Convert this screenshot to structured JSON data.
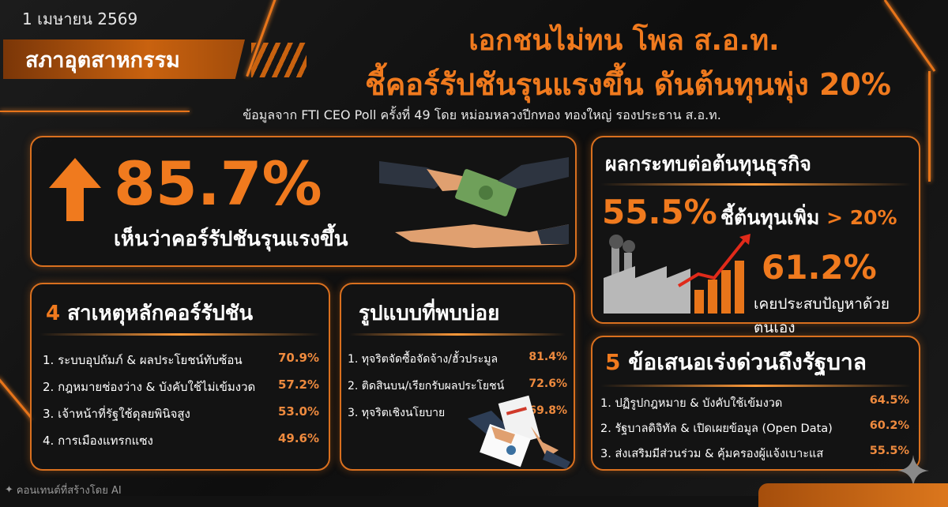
{
  "header": {
    "date": "1 เมษายน 2569",
    "org_banner": "สภาอุตสาหกรรม",
    "title_line1": "เอกชนไม่ทน โพล ส.อ.ท.",
    "title_line2": "ชี้คอร์รัปชันรุนแรงขึ้น ดันต้นทุนพุ่ง 20%",
    "subtitle": "ข้อมูลจาก FTI CEO Poll ครั้งที่ 49 โดย หม่อมหลวงปีกทอง ทองใหญ่ รองประธาน ส.อ.ท."
  },
  "headline_stat": {
    "value": "85.7%",
    "label": "เห็นว่าคอร์รัปชันรุนแรงขึ้น",
    "icon": "arrow-up-icon"
  },
  "cost_impact": {
    "title": "ผลกระทบต่อต้นทุนธุรกิจ",
    "stat1_value": "55.5%",
    "stat1_label": "ชี้ต้นทุนเพิ่ม",
    "stat1_threshold": "> 20%",
    "stat2_value": "61.2%",
    "stat2_label": "เคยประสบปัญหาด้วยตนเอง"
  },
  "causes": {
    "title_number": "4",
    "title": "สาเหตุหลักคอร์รัปชัน",
    "items": [
      {
        "label": "1. ระบบอุปถัมภ์ & ผลประโยชน์ทับซ้อน",
        "value": "70.9%"
      },
      {
        "label": "2. กฎหมายช่องว่าง & บังคับใช้ไม่เข้มงวด",
        "value": "57.2%"
      },
      {
        "label": "3. เจ้าหน้าที่รัฐใช้ดุลยพินิจสูง",
        "value": "53.0%"
      },
      {
        "label": "4. การเมืองแทรกแซง",
        "value": "49.6%"
      }
    ]
  },
  "patterns": {
    "title": "รูปแบบที่พบบ่อย",
    "items": [
      {
        "label": "1. ทุจริตจัดซื้อจัดจ้าง/ฮั้วประมูล",
        "value": "81.4%"
      },
      {
        "label": "2. ติดสินบน/เรียกรับผลประโยชน์",
        "value": "72.6%"
      },
      {
        "label": "3. ทุจริตเชิงนโยบาย",
        "value": "69.8%"
      }
    ]
  },
  "proposals": {
    "title_number": "5",
    "title": "ข้อเสนอเร่งด่วนถึงรัฐบาล",
    "items": [
      {
        "label": "1. ปฏิรูปกฎหมาย & บังคับใช้เข้มงวด",
        "value": "64.5%"
      },
      {
        "label": "2. รัฐบาลดิจิทัล & เปิดเผยข้อมูล (Open Data)",
        "value": "60.2%"
      },
      {
        "label": "3. ส่งเสริมมีส่วนร่วม & คุ้มครองผู้แจ้งเบาะแส",
        "value": "55.5%"
      }
    ]
  },
  "footer": {
    "ai_note": "คอนเทนต์ที่สร้างโดย AI"
  },
  "colors": {
    "accent": "#f07a1e",
    "background": "#121212",
    "text": "#ffffff"
  }
}
